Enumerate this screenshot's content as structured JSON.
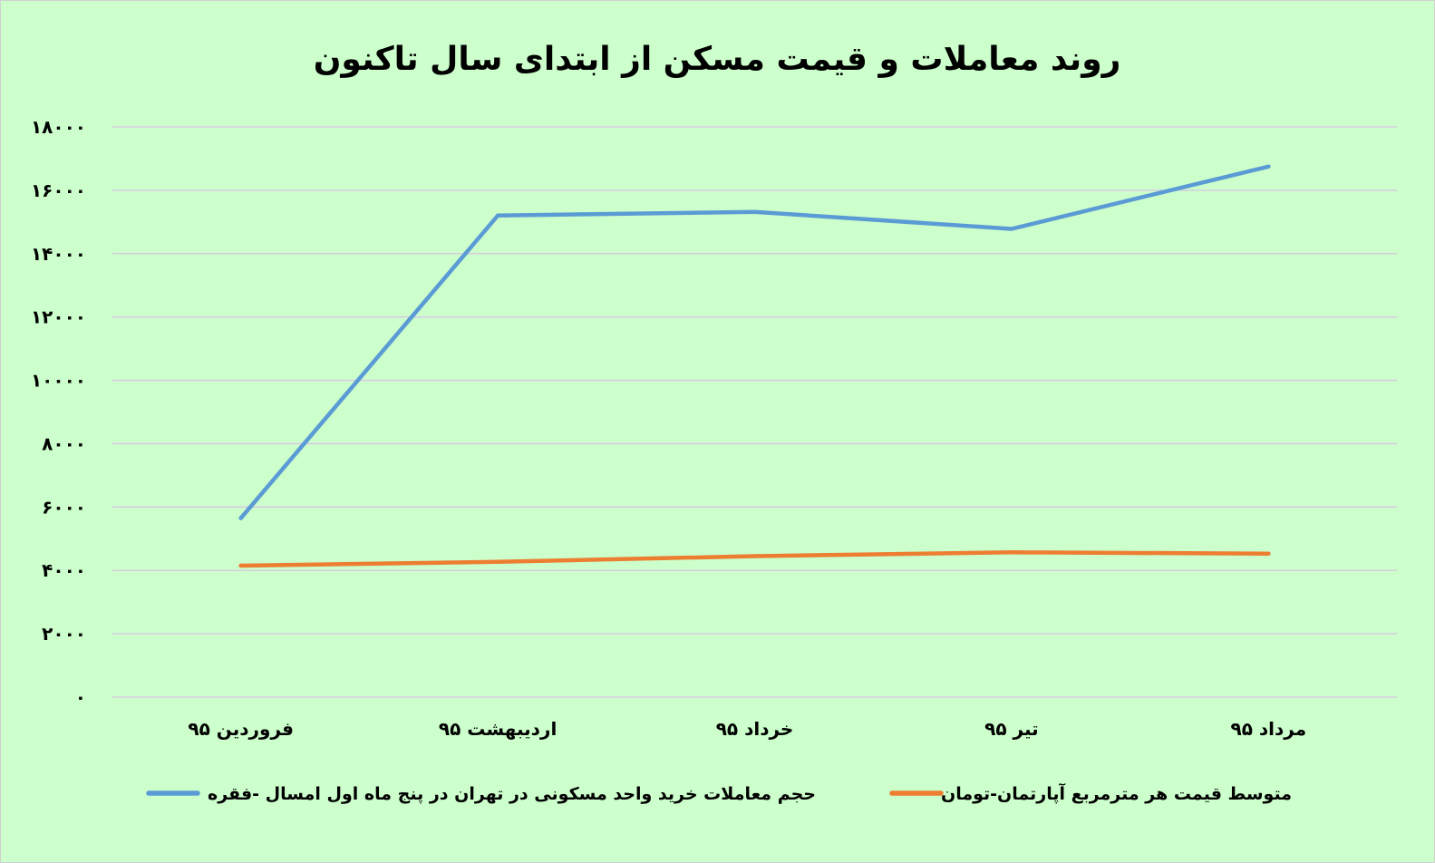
{
  "chart_data": {
    "type": "line",
    "title": "روند معاملات و قیمت مسکن از ابتدای سال تاکنون",
    "categories": [
      "فروردین ۹۵",
      "اردیبهشت ۹۵",
      "خرداد ۹۵",
      "تیر ۹۵",
      "مرداد ۹۵"
    ],
    "series": [
      {
        "name": "حجم معاملات خرید واحد مسکونی در تهران در پنج ماه اول امسال -فقره",
        "color": "#5b9bd5",
        "values": [
          5650,
          15200,
          15320,
          14780,
          16750
        ]
      },
      {
        "name": "متوسط قیمت هر مترمربع آپارتمان-تومان",
        "color": "#ed7d31",
        "values": [
          4150,
          4270,
          4450,
          4570,
          4530
        ]
      }
    ],
    "ylim": [
      0,
      18000
    ],
    "yticks": [
      0,
      2000,
      4000,
      6000,
      8000,
      10000,
      12000,
      14000,
      16000,
      18000
    ],
    "ytick_labels": [
      "۰",
      "۲۰۰۰",
      "۴۰۰۰",
      "۶۰۰۰",
      "۸۰۰۰",
      "۱۰۰۰۰",
      "۱۲۰۰۰",
      "۱۴۰۰۰",
      "۱۶۰۰۰",
      "۱۸۰۰۰"
    ],
    "grid": true,
    "gridColor": "#d9c3e3",
    "background": "#ccffcc",
    "legend": "bottom"
  }
}
